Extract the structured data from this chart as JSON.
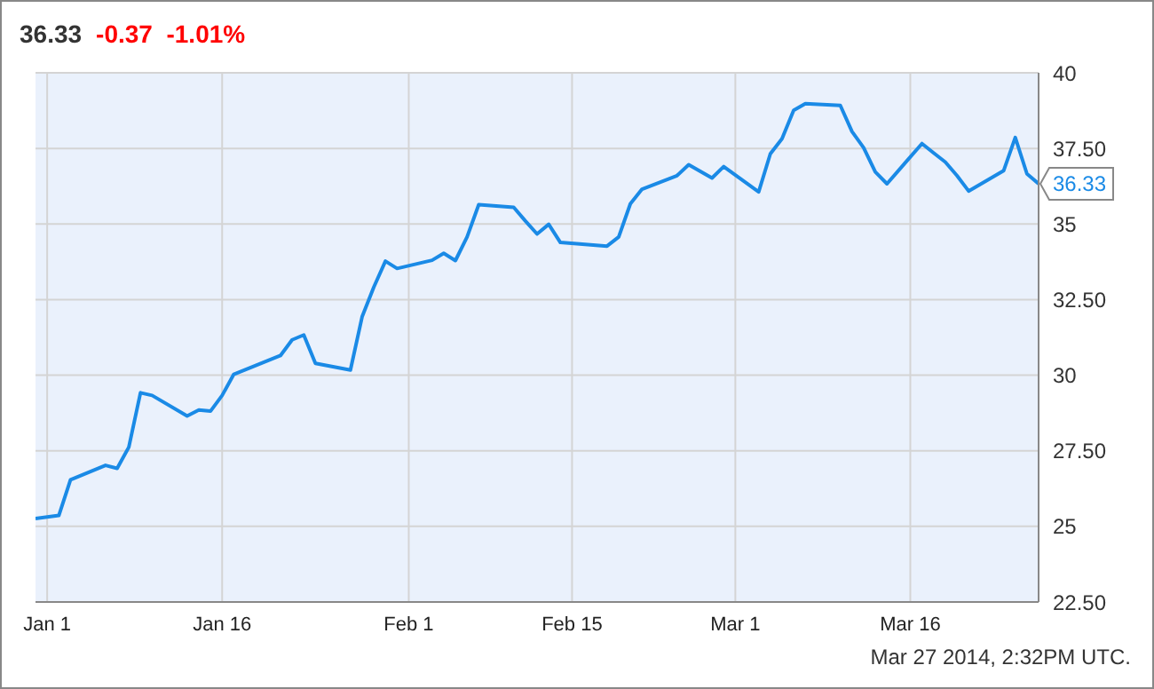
{
  "chart_data": {
    "type": "line",
    "title": "36.33",
    "subtitle": "-0.37  -1.01%",
    "x": [
      "2013-12-31",
      "2014-01-02",
      "2014-01-03",
      "2014-01-06",
      "2014-01-07",
      "2014-01-08",
      "2014-01-09",
      "2014-01-10",
      "2014-01-13",
      "2014-01-14",
      "2014-01-15",
      "2014-01-16",
      "2014-01-17",
      "2014-01-21",
      "2014-01-22",
      "2014-01-23",
      "2014-01-24",
      "2014-01-27",
      "2014-01-28",
      "2014-01-29",
      "2014-01-30",
      "2014-01-31",
      "2014-02-03",
      "2014-02-04",
      "2014-02-05",
      "2014-02-06",
      "2014-02-07",
      "2014-02-10",
      "2014-02-11",
      "2014-02-12",
      "2014-02-13",
      "2014-02-14",
      "2014-02-18",
      "2014-02-19",
      "2014-02-20",
      "2014-02-21",
      "2014-02-24",
      "2014-02-25",
      "2014-02-26",
      "2014-02-27",
      "2014-02-28",
      "2014-03-03",
      "2014-03-04",
      "2014-03-05",
      "2014-03-06",
      "2014-03-07",
      "2014-03-10",
      "2014-03-11",
      "2014-03-12",
      "2014-03-13",
      "2014-03-14",
      "2014-03-17",
      "2014-03-18",
      "2014-03-19",
      "2014-03-20",
      "2014-03-21",
      "2014-03-24",
      "2014-03-25",
      "2014-03-26",
      "2014-03-27"
    ],
    "series": [
      {
        "color": "#1a8ae6",
        "values": [
          25.26,
          25.36,
          26.54,
          27.02,
          26.92,
          27.62,
          29.42,
          29.33,
          28.65,
          28.85,
          28.81,
          29.33,
          30.03,
          30.65,
          31.17,
          31.33,
          30.39,
          30.17,
          31.93,
          32.91,
          33.77,
          33.53,
          33.8,
          34.03,
          33.79,
          34.57,
          35.64,
          35.55,
          35.1,
          34.67,
          34.99,
          34.39,
          34.27,
          34.57,
          35.67,
          36.15,
          36.6,
          36.96,
          36.74,
          36.52,
          36.9,
          36.06,
          37.32,
          37.82,
          38.76,
          38.98,
          38.92,
          38.06,
          37.52,
          36.72,
          36.33,
          37.66,
          37.35,
          37.05,
          36.6,
          36.09,
          36.76,
          37.86,
          36.66,
          36.33
        ],
        "value_labels": [
          null,
          null,
          null,
          null,
          null,
          null,
          null,
          null,
          null,
          null,
          null,
          null,
          null,
          null,
          null,
          null,
          null,
          null,
          null,
          null,
          null,
          null,
          null,
          null,
          null,
          null,
          null,
          null,
          null,
          null,
          null,
          null,
          null,
          null,
          null,
          null,
          null,
          null,
          null,
          null,
          null,
          null,
          null,
          null,
          null,
          null,
          null,
          null,
          null,
          null,
          null,
          null,
          null,
          null,
          null,
          null,
          null,
          null,
          null,
          "36.33"
        ]
      }
    ],
    "xlim": [
      "2013-12-31",
      "2014-03-27"
    ],
    "xticks": [
      {
        "value": "2014-01-01",
        "label": "Jan 1"
      },
      {
        "value": "2014-01-16",
        "label": "Jan 16"
      },
      {
        "value": "2014-02-01",
        "label": "Feb 1"
      },
      {
        "value": "2014-02-15",
        "label": "Feb 15"
      },
      {
        "value": "2014-03-01",
        "label": "Mar 1"
      },
      {
        "value": "2014-03-16",
        "label": "Mar 16"
      }
    ],
    "ylim": [
      22.5,
      40
    ],
    "yticks": [
      {
        "value": 22.5,
        "label": "22.50"
      },
      25,
      {
        "value": 27.5,
        "label": "27.50"
      },
      30,
      {
        "value": 32.5,
        "label": "32.50"
      },
      35,
      {
        "value": 37.5,
        "label": "37.50"
      },
      40
    ],
    "grid": true,
    "legend": false,
    "marker": "none",
    "line_style": "solid",
    "annotations": [
      "Mar 27 2014, 2:32PM UTC."
    ]
  }
}
